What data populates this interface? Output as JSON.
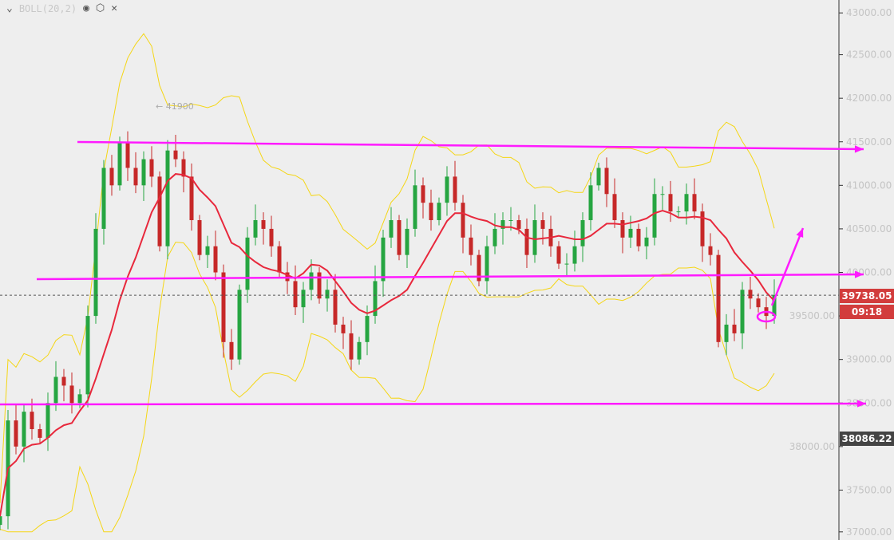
{
  "indicator": {
    "label": "BOLL(20,2)",
    "icons": [
      "chevron-down-icon",
      "eye-icon",
      "settings-icon",
      "close-icon"
    ]
  },
  "last_price": {
    "value": "39738.05",
    "countdown": "09:18",
    "color": "#d23c3c"
  },
  "marker_price": {
    "value": "38086.22",
    "color": "#444444"
  },
  "high_annotation": "← 41900",
  "colors": {
    "up": "#26a541",
    "down": "#c62828",
    "mid": "#e8283c",
    "band": "#f5d614",
    "drawing": "#ff1aff"
  },
  "chart_data": {
    "type": "candlestick",
    "title": "",
    "y_ticks": [
      "43000.00",
      "42500.00",
      "42000.00",
      "41500.00",
      "41000.00",
      "40500.00",
      "40000.00",
      "39500.00",
      "39000.00",
      "38500.00",
      "38000.00",
      "37500.00",
      "37000.00"
    ],
    "ylim": [
      37000,
      43000
    ],
    "grid": false,
    "closes": [
      37200,
      38300,
      38000,
      38400,
      38200,
      38100,
      38500,
      38800,
      38700,
      38500,
      38600,
      39500,
      40500,
      41200,
      41000,
      41500,
      41200,
      41000,
      41300,
      41100,
      40300,
      41400,
      41300,
      41100,
      40600,
      40200,
      40300,
      40000,
      39200,
      39000,
      39800,
      40400,
      40600,
      40500,
      40300,
      40000,
      39900,
      39600,
      39800,
      40000,
      39700,
      39800,
      39400,
      39300,
      39000,
      39200,
      39500,
      39900,
      40400,
      40600,
      40200,
      40500,
      41000,
      40800,
      40600,
      40800,
      41100,
      40800,
      40400,
      40200,
      39900,
      40300,
      40500,
      40600,
      40600,
      40500,
      40200,
      40600,
      40500,
      40300,
      40100,
      40100,
      40300,
      40600,
      41000,
      41200,
      40900,
      40600,
      40400,
      40500,
      40300,
      40400,
      40900,
      40900,
      40700,
      40700,
      40900,
      40700,
      40300,
      40200,
      39200,
      39400,
      39300,
      39800,
      39700,
      39600,
      39500,
      39740
    ]
  }
}
